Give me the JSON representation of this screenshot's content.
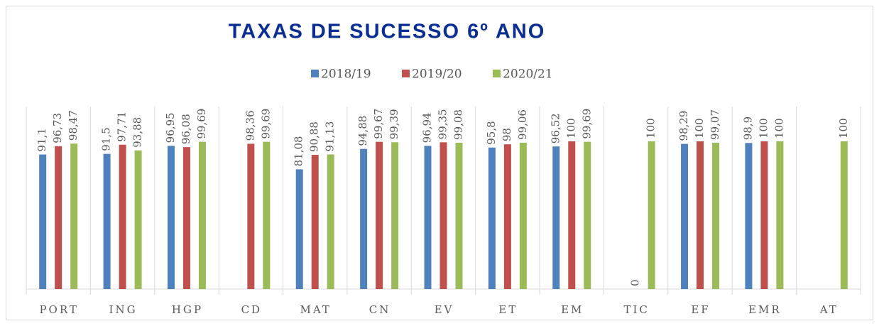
{
  "chart_data": {
    "type": "bar",
    "title": "TAXAS DE SUCESSO 6º ANO",
    "categories": [
      "PORT",
      "ING",
      "HGP",
      "CD",
      "MAT",
      "CN",
      "EV",
      "ET",
      "EM",
      "TIC",
      "EF",
      "EMR",
      "AT"
    ],
    "ylim": [
      0,
      100
    ],
    "series": [
      {
        "name": "2018/19",
        "color": "#4f81bd",
        "values": [
          91.1,
          91.5,
          96.95,
          null,
          81.08,
          94.88,
          96.94,
          95.8,
          96.52,
          null,
          98.29,
          98.9,
          null
        ],
        "value_labels": [
          "91,1",
          "91,5",
          "96,95",
          null,
          "81,08",
          "94,88",
          "96,94",
          "95,8",
          "96,52",
          null,
          "98,29",
          "98,9",
          null
        ]
      },
      {
        "name": "2019/20",
        "color": "#c0504d",
        "values": [
          96.73,
          97.71,
          96.08,
          98.36,
          90.88,
          99.67,
          99.35,
          98,
          100,
          0,
          100,
          100,
          null
        ],
        "value_labels": [
          "96,73",
          "97,71",
          "96,08",
          "98,36",
          "90,88",
          "99,67",
          "99,35",
          "98",
          "100",
          "0",
          "100",
          "100",
          null
        ]
      },
      {
        "name": "2020/21",
        "color": "#9bbb59",
        "values": [
          98.47,
          93.88,
          99.69,
          99.69,
          91.13,
          99.39,
          99.08,
          99.06,
          99.69,
          100,
          99.07,
          100,
          100
        ],
        "value_labels": [
          "98,47",
          "93,88",
          "99,69",
          "99,69",
          "91,13",
          "99,39",
          "99,08",
          "99,06",
          "99,69",
          "100",
          "99,07",
          "100",
          "100"
        ]
      }
    ]
  }
}
